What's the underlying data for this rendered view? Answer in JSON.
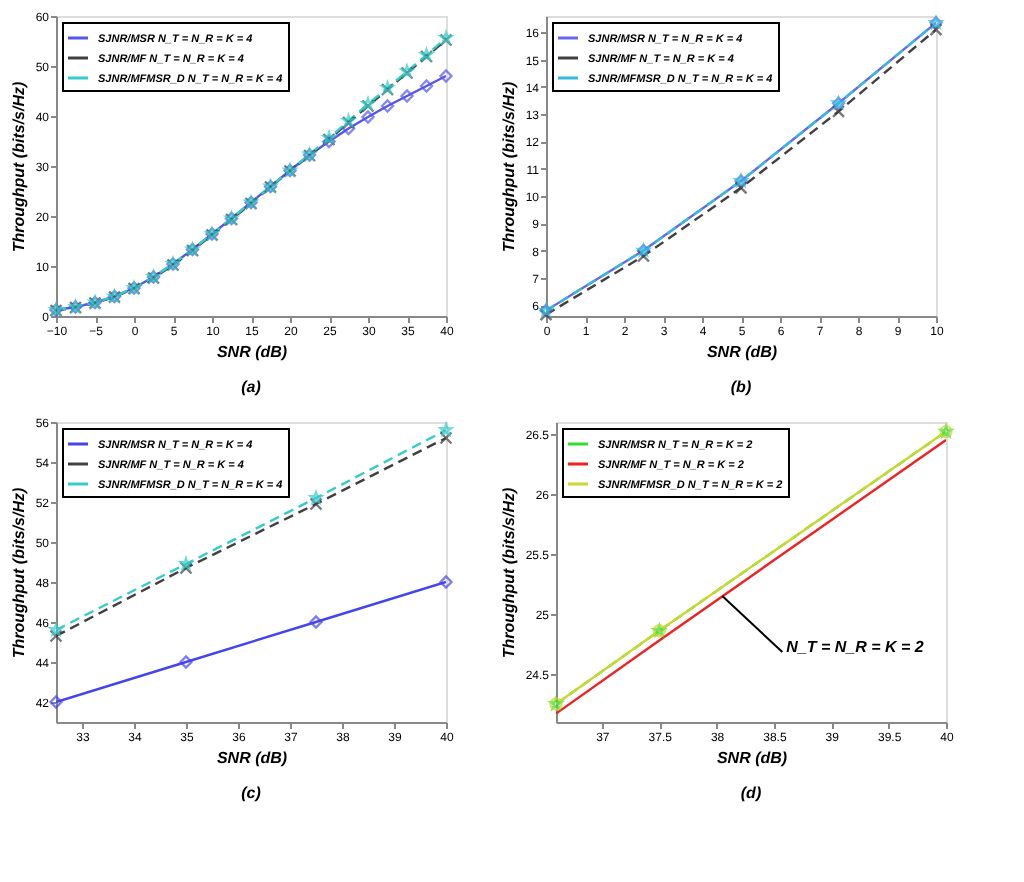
{
  "chart_data": [
    {
      "type": "line",
      "xlabel": "SNR (dB)",
      "ylabel": "Throughput (bits/s/Hz)",
      "legend": "top left",
      "annotations": [
        "(a)"
      ],
      "xlim": [
        -10,
        40
      ],
      "xticks": [
        -10,
        -5,
        0,
        5,
        10,
        15,
        20,
        25,
        30,
        35,
        40
      ],
      "ylim": [
        0,
        60
      ],
      "yticks": [
        0,
        10,
        20,
        30,
        40,
        50,
        60
      ],
      "x": [
        -10,
        -7.5,
        -5,
        -2.5,
        0,
        2.5,
        5,
        7.5,
        10,
        12.5,
        15,
        17.5,
        20,
        22.5,
        25,
        27.5,
        30,
        32.5,
        35,
        37.5,
        40
      ],
      "series": [
        {
          "name": "SJNR/MSR N_T = N_R = K = 4",
          "color": "#5555ee",
          "marker": "diamond",
          "line_style": "solid",
          "values": [
            1.2,
            1.8,
            2.7,
            3.9,
            5.6,
            7.8,
            10.4,
            13.3,
            16.4,
            19.5,
            22.7,
            25.9,
            29.1,
            32.2,
            34.9,
            37.5,
            39.8,
            42.0,
            44.0,
            46.0,
            48.0
          ]
        },
        {
          "name": "SJNR/MF N_T = N_R = K = 4",
          "color": "#404040",
          "marker": "cross",
          "line_style": "dashed",
          "values": [
            1.1,
            1.7,
            2.6,
            3.8,
            5.5,
            7.6,
            10.2,
            13.1,
            16.2,
            19.3,
            22.5,
            25.8,
            29.0,
            32.1,
            35.3,
            38.7,
            42.0,
            45.3,
            48.6,
            51.9,
            55.2
          ]
        },
        {
          "name": "SJNR/MFMSR_D N_T = N_R = K = 4",
          "color": "#33cccc",
          "marker": "star",
          "line_style": "dashed",
          "values": [
            1.2,
            1.8,
            2.7,
            3.9,
            5.6,
            7.8,
            10.4,
            13.3,
            16.4,
            19.5,
            22.7,
            25.9,
            29.1,
            32.3,
            35.6,
            39.0,
            42.4,
            45.6,
            48.9,
            52.2,
            55.6
          ]
        }
      ]
    },
    {
      "type": "line",
      "xlabel": "SNR (dB)",
      "ylabel": "Throughput (bits/s/Hz)",
      "legend": "top left",
      "annotations": [
        "(b)"
      ],
      "xlim": [
        0,
        10
      ],
      "xticks": [
        0,
        1,
        2,
        3,
        4,
        5,
        6,
        7,
        8,
        9,
        10
      ],
      "ylim": [
        5.6,
        16.6
      ],
      "yticks": [
        6,
        7,
        8,
        9,
        10,
        11,
        12,
        13,
        14,
        15,
        16
      ],
      "x": [
        0,
        2.5,
        5,
        7.5,
        10
      ],
      "series": [
        {
          "name": "SJNR/MSR N_T = N_R = K = 4",
          "color": "#6666ee",
          "marker": "diamond",
          "line_style": "solid",
          "values": [
            5.8,
            8.0,
            10.55,
            13.4,
            16.35
          ]
        },
        {
          "name": "SJNR/MF N_T = N_R = K = 4",
          "color": "#404040",
          "marker": "cross",
          "line_style": "dashed",
          "values": [
            5.65,
            7.8,
            10.3,
            13.1,
            16.1
          ]
        },
        {
          "name": "SJNR/MFMSR_D N_T = N_R = K = 4",
          "color": "#33bbdd",
          "marker": "star",
          "line_style": "dashed",
          "values": [
            5.8,
            8.0,
            10.55,
            13.4,
            16.35
          ]
        }
      ]
    },
    {
      "type": "line",
      "xlabel": "SNR (dB)",
      "ylabel": "Throughput (bits/s/Hz)",
      "legend": "top left",
      "annotations": [
        "(c)"
      ],
      "xlim": [
        32.5,
        40
      ],
      "xticks": [
        33,
        34,
        35,
        36,
        37,
        38,
        39,
        40
      ],
      "ylim": [
        41,
        56
      ],
      "yticks": [
        42,
        44,
        46,
        48,
        50,
        52,
        54,
        56
      ],
      "x": [
        32.5,
        35,
        37.5,
        40
      ],
      "series": [
        {
          "name": "SJNR/MSR N_T = N_R = K = 4",
          "color": "#4444ee",
          "marker": "diamond",
          "line_style": "solid",
          "values": [
            42.0,
            44.0,
            46.0,
            48.0
          ]
        },
        {
          "name": "SJNR/MF N_T = N_R = K = 4",
          "color": "#404040",
          "marker": "cross",
          "line_style": "dashed",
          "values": [
            45.3,
            48.7,
            51.9,
            55.2
          ]
        },
        {
          "name": "SJNR/MFMSR_D N_T = N_R = K = 4",
          "color": "#33cccc",
          "marker": "star",
          "line_style": "dashed",
          "values": [
            45.6,
            48.9,
            52.2,
            55.6
          ]
        }
      ]
    },
    {
      "type": "line",
      "xlabel": "SNR (dB)",
      "ylabel": "Throughput (bits/s/Hz)",
      "legend": "top left",
      "annotations": [
        "(d)",
        {
          "text": "N_T = N_R = K = 2",
          "x": 38.05,
          "y": 25.15
        }
      ],
      "xlim": [
        36.6,
        40
      ],
      "xticks": [
        37,
        37.5,
        38,
        38.5,
        39,
        39.5,
        40
      ],
      "ylim": [
        24.1,
        26.6
      ],
      "yticks": [
        24.5,
        25,
        25.5,
        26,
        26.5
      ],
      "x": [
        36.6,
        37.5,
        40
      ],
      "series": [
        {
          "name": "SJNR/MSR N_T = N_R = K = 2",
          "color": "#33dd33",
          "marker": "star",
          "line_style": "dashed",
          "values": [
            24.25,
            24.86,
            26.52
          ]
        },
        {
          "name": "SJNR/MF N_T = N_R = K = 2",
          "color": "#ee2222",
          "marker": "none",
          "line_style": "solid",
          "values": [
            24.17,
            24.78,
            26.45
          ]
        },
        {
          "name": "SJNR/MFMSR_D N_T = N_R = K = 2",
          "color": "#c8d830",
          "marker": "circle",
          "line_style": "solid",
          "values": [
            24.25,
            24.86,
            26.52
          ]
        }
      ]
    }
  ]
}
